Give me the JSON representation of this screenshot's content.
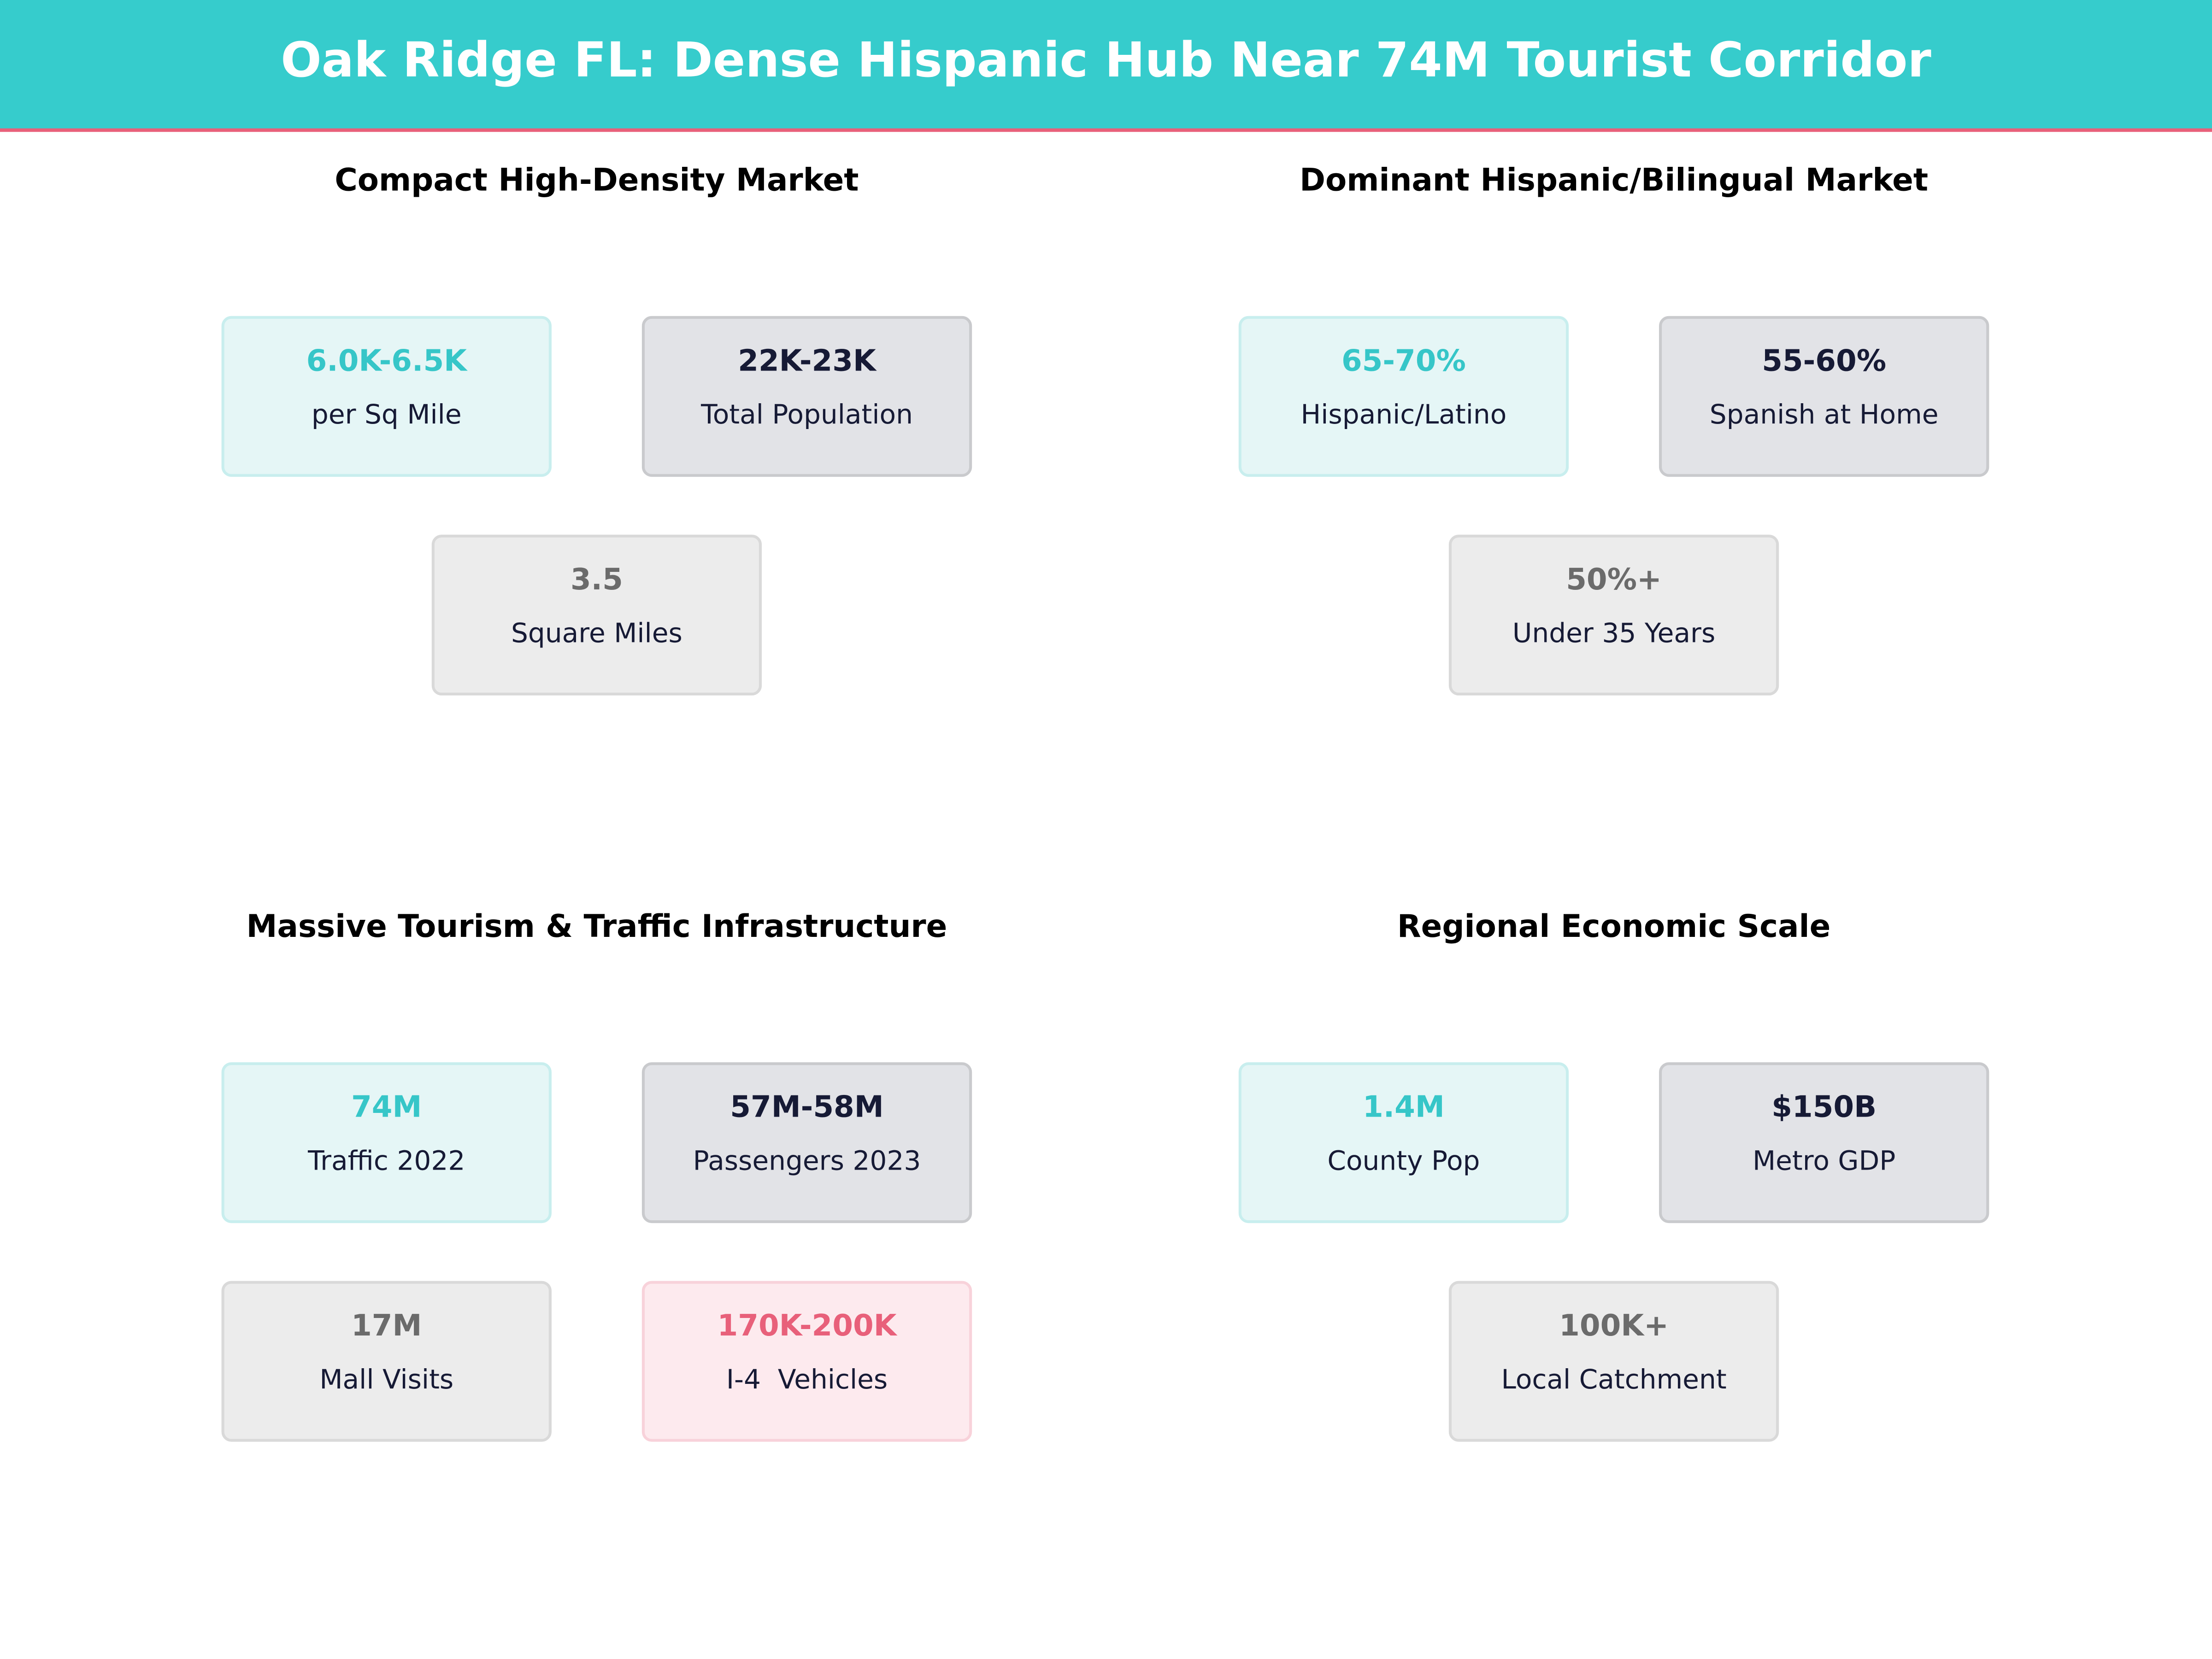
{
  "header": {
    "title": "Oak Ridge FL: Dense Hispanic Hub Near 74M Tourist Corridor"
  },
  "panels": [
    {
      "title": "Compact High-Density Market",
      "cards": [
        {
          "value": "6.0K-6.5K",
          "label": "per Sq Mile",
          "color": "#36c6c8"
        },
        {
          "value": "22K-23K",
          "label": "Total Population",
          "color": "#161a35"
        },
        {
          "value": "3.5",
          "label": "Square Miles",
          "color": "#6b6b6b"
        }
      ]
    },
    {
      "title": "Dominant Hispanic/Bilingual Market",
      "cards": [
        {
          "value": "65-70%",
          "label": "Hispanic/Latino",
          "color": "#36c6c8"
        },
        {
          "value": "55-60%",
          "label": "Spanish at Home",
          "color": "#161a35"
        },
        {
          "value": "50%+",
          "label": "Under 35 Years",
          "color": "#6b6b6b"
        }
      ]
    },
    {
      "title": "Massive Tourism & Traffic Infrastructure",
      "cards": [
        {
          "value": "74M",
          "label": "Traffic 2022",
          "color": "#36c6c8"
        },
        {
          "value": "57M-58M",
          "label": "Passengers 2023",
          "color": "#161a35"
        },
        {
          "value": "17M",
          "label": "Mall Visits",
          "color": "#6b6b6b"
        },
        {
          "value": "170K-200K",
          "label": "I-4  Vehicles",
          "color": "#e8607a"
        }
      ]
    },
    {
      "title": "Regional Economic Scale",
      "cards": [
        {
          "value": "1.4M",
          "label": "County Pop",
          "color": "#36c6c8"
        },
        {
          "value": "$150B",
          "label": "Metro GDP",
          "color": "#161a35"
        },
        {
          "value": "100K+",
          "label": "Local Catchment",
          "color": "#6b6b6b"
        }
      ]
    }
  ]
}
